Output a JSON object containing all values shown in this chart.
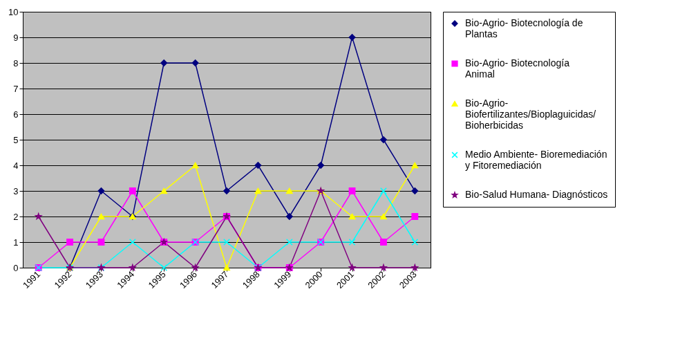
{
  "chart_data": {
    "type": "line",
    "categories": [
      "1991",
      "1992",
      "1993",
      "1994",
      "1995",
      "1996",
      "1997",
      "1998",
      "1999",
      "2000",
      "2001",
      "2002",
      "2003"
    ],
    "ylim": [
      0,
      10
    ],
    "yticks": [
      0,
      1,
      2,
      3,
      4,
      5,
      6,
      7,
      8,
      9,
      10
    ],
    "grid": "y",
    "legend": "right",
    "series": [
      {
        "name": "Bio-Agrio- Biotecnología de Plantas",
        "color": "#000080",
        "marker": "diamond",
        "values": [
          null,
          0,
          3,
          2,
          8,
          8,
          3,
          4,
          2,
          4,
          9,
          5,
          3
        ]
      },
      {
        "name": "Bio-Agrio- Biotecnología Animal",
        "color": "#ff00ff",
        "marker": "square",
        "values": [
          0,
          1,
          1,
          3,
          1,
          1,
          2,
          0,
          0,
          1,
          3,
          1,
          2
        ]
      },
      {
        "name": "Bio-Agrio- Biofertilizantes/Bioplaguicidas/ Bioherbicidas",
        "color": "#ffff00",
        "marker": "triangle",
        "values": [
          null,
          0,
          2,
          2,
          3,
          4,
          0,
          3,
          3,
          3,
          2,
          2,
          4
        ]
      },
      {
        "name": "Medio Ambiente- Bioremediación y Fitoremediación",
        "color": "#00ffff",
        "marker": "cross",
        "values": [
          0,
          0,
          0,
          1,
          0,
          1,
          1,
          0,
          1,
          1,
          1,
          3,
          1
        ]
      },
      {
        "name": "Bio-Salud Humana- Diagnósticos",
        "color": "#800080",
        "marker": "star",
        "values": [
          2,
          0,
          0,
          0,
          1,
          0,
          2,
          0,
          0,
          3,
          0,
          0,
          0
        ]
      }
    ]
  }
}
